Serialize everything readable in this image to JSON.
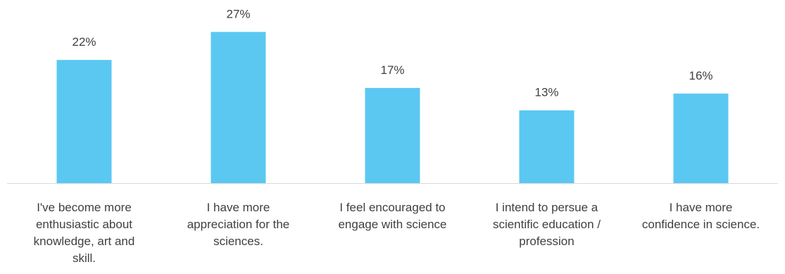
{
  "chart_data": {
    "type": "bar",
    "categories": [
      [
        "I've become more",
        "enthusiastic about",
        "knowledge, art and",
        "skill."
      ],
      [
        "I have more",
        "appreciation for the",
        "sciences."
      ],
      [
        "I feel encouraged to",
        "engage with science"
      ],
      [
        "I intend to persue a",
        "scientific education /",
        "profession"
      ],
      [
        "I have more",
        "confidence in science."
      ]
    ],
    "values": [
      22,
      27,
      17,
      13,
      16
    ],
    "value_labels": [
      "22%",
      "27%",
      "17%",
      "13%",
      "16%"
    ],
    "ylim": [
      0,
      30
    ],
    "grid": false,
    "legend": "none",
    "bar_color": "#5BC8F2",
    "axis_color": "#D9D9D9",
    "text_color": "#404040"
  }
}
